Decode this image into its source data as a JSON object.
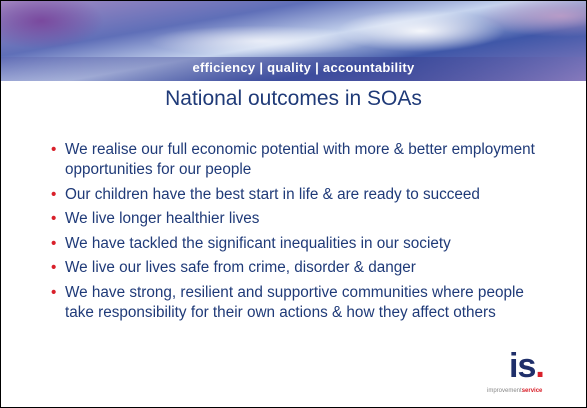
{
  "header": {
    "tagline": "efficiency | quality | accountability"
  },
  "title": "National outcomes in SOAs",
  "bullets": [
    "We realise our full economic potential with more & better employment opportunities for our people",
    "Our children have the best start in life & are ready to succeed",
    "We live longer healthier lives",
    "We have tackled the significant inequalities in our society",
    "We live our lives safe from crime, disorder & danger",
    "We have strong, resilient and supportive communities where people take responsibility for their own actions & how they affect others"
  ],
  "logo": {
    "letters": "is",
    "dot": ".",
    "caption_grey": "improvement",
    "caption_red": "service"
  }
}
